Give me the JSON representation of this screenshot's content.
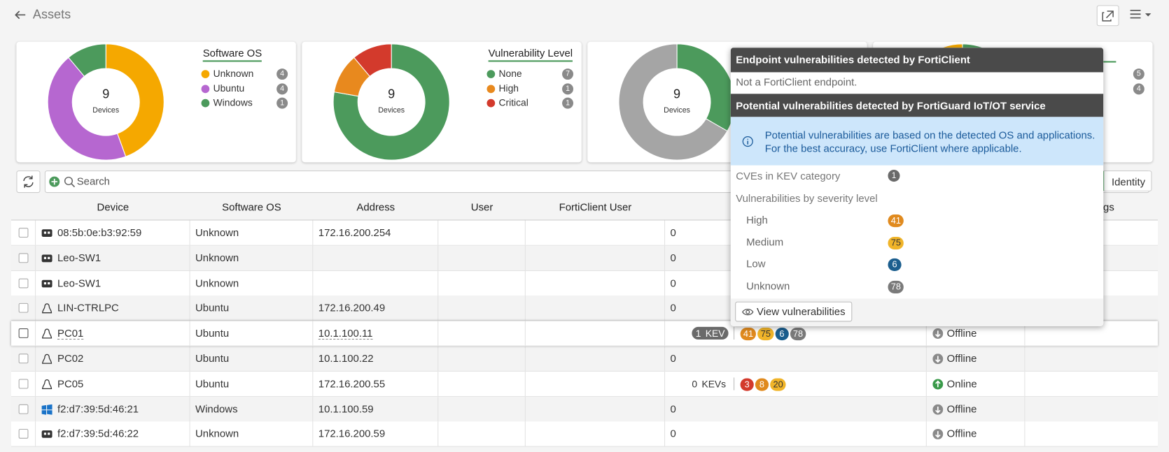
{
  "header": {
    "title": "Assets"
  },
  "widgets": [
    {
      "title": "Software OS",
      "center_value": 9,
      "center_label": "Devices",
      "slices": [
        {
          "label": "Unknown",
          "value": 4,
          "color": "#f5a800"
        },
        {
          "label": "Ubuntu",
          "value": 4,
          "color": "#b667d0"
        },
        {
          "label": "Windows",
          "value": 1,
          "color": "#4c9a5c"
        }
      ]
    },
    {
      "title": "Vulnerability Level",
      "center_value": 9,
      "center_label": "Devices",
      "slices": [
        {
          "label": "None",
          "value": 7,
          "color": "#4c9a5c"
        },
        {
          "label": "High",
          "value": 1,
          "color": "#e8891e"
        },
        {
          "label": "Critical",
          "value": 1,
          "color": "#d33a2c"
        }
      ]
    },
    {
      "center_value": 9,
      "center_label": "Devices",
      "slices": [
        {
          "value": 3,
          "color": "#4c9a5c"
        },
        {
          "value": 6,
          "color": "#a5a5a5"
        }
      ]
    },
    {
      "legend_counts": [
        5,
        4
      ],
      "slices": [
        {
          "value": 5,
          "color": "#4c9a5c"
        },
        {
          "value": 4,
          "color": "#f5a800"
        }
      ]
    }
  ],
  "toolbar": {
    "search_placeholder": "Search",
    "identity_button": "Identity"
  },
  "table": {
    "columns": [
      "Device",
      "Software OS",
      "Address",
      "User",
      "FortiClient User",
      "Tags"
    ],
    "rows": [
      {
        "icon": "device",
        "device": "08:5b:0e:b3:92:59",
        "os": "Unknown",
        "address": "172.16.200.254",
        "vulnerabilities": 0
      },
      {
        "icon": "device",
        "device": "Leo-SW1",
        "os": "Unknown",
        "address": "",
        "vulnerabilities": 0
      },
      {
        "icon": "device",
        "device": "Leo-SW1",
        "os": "Unknown",
        "address": "",
        "vulnerabilities": 0
      },
      {
        "icon": "linux",
        "device": "LIN-CTRLPC",
        "os": "Ubuntu",
        "address": "172.16.200.49",
        "vulnerabilities": 0
      },
      {
        "icon": "linux",
        "device": "PC01",
        "os": "Ubuntu",
        "address": "10.1.100.11",
        "kev_count": 1,
        "kev_label": "KEV",
        "badges": [
          {
            "value": 41,
            "color": "#e08a1e"
          },
          {
            "value": 75,
            "color": "#f0b429"
          },
          {
            "value": 6,
            "color": "#1b5e8e"
          },
          {
            "value": 78,
            "color": "#7a7a7a"
          }
        ],
        "status": "Offline"
      },
      {
        "icon": "linux",
        "device": "PC02",
        "os": "Ubuntu",
        "address": "10.1.100.22",
        "vulnerabilities": 0,
        "status": "Offline"
      },
      {
        "icon": "linux",
        "device": "PC05",
        "os": "Ubuntu",
        "address": "172.16.200.55",
        "kev_count": 0,
        "kev_label": "KEVs",
        "badges": [
          {
            "value": 3,
            "color": "#d33a2c"
          },
          {
            "value": 8,
            "color": "#e08a1e"
          },
          {
            "value": 20,
            "color": "#f0b429"
          }
        ],
        "status": "Online"
      },
      {
        "icon": "windows",
        "device": "f2:d7:39:5d:46:21",
        "os": "Windows",
        "address": "10.1.100.59",
        "vulnerabilities": 0,
        "status": "Offline"
      },
      {
        "icon": "device",
        "device": "f2:d7:39:5d:46:22",
        "os": "Unknown",
        "address": "172.16.200.59",
        "vulnerabilities": 0,
        "status": "Offline"
      }
    ]
  },
  "tooltip": {
    "section1_title": "Endpoint vulnerabilities detected by FortiClient",
    "section1_text": "Not a FortiClient endpoint.",
    "section2_title": "Potential vulnerabilities detected by FortiGuard IoT/OT service",
    "info_lines": [
      "Potential vulnerabilities are based on the detected OS and applications.",
      "For the best accuracy, use FortiClient where applicable."
    ],
    "kev_label": "CVEs in KEV category",
    "kev_count": 1,
    "severity_title": "Vulnerabilities by severity level",
    "severities": [
      {
        "label": "High",
        "value": 41,
        "color": "#e08a1e"
      },
      {
        "label": "Medium",
        "value": 75,
        "color": "#f0b429"
      },
      {
        "label": "Low",
        "value": 6,
        "color": "#1b5e8e"
      },
      {
        "label": "Unknown",
        "value": 78,
        "color": "#7a7a7a"
      }
    ],
    "button": "View vulnerabilities"
  }
}
